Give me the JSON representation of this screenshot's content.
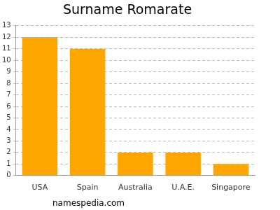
{
  "chart_data": {
    "type": "bar",
    "title": "Surname Romarate",
    "categories": [
      "USA",
      "Spain",
      "Australia",
      "U.A.E.",
      "Singapore"
    ],
    "values": [
      12,
      11,
      2,
      2,
      1
    ],
    "color": "#ffa500",
    "ylim": [
      0,
      13
    ],
    "yticks": [
      0,
      1,
      2,
      3,
      4,
      5,
      6,
      7,
      8,
      9,
      10,
      11,
      12,
      13
    ],
    "grid": true,
    "annotation": "namespedia.com"
  }
}
